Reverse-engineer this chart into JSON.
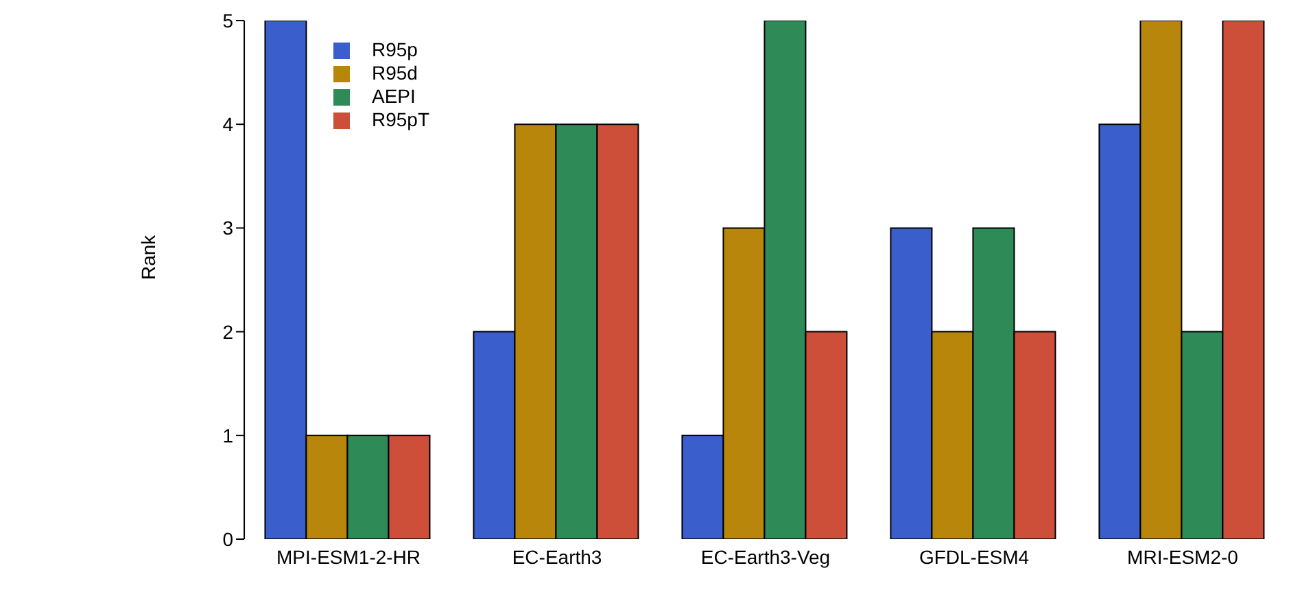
{
  "chart_data": {
    "type": "bar",
    "ylabel": "Rank",
    "categories": [
      "MPI-ESM1-2-HR",
      "EC-Earth3",
      "EC-Earth3-Veg",
      "GFDL-ESM4",
      "MRI-ESM2-0"
    ],
    "series": [
      {
        "name": "R95p",
        "color": "#3a5fcd",
        "values": [
          5,
          2,
          1,
          3,
          4
        ]
      },
      {
        "name": "R95d",
        "color": "#b8860b",
        "values": [
          1,
          4,
          3,
          2,
          5
        ]
      },
      {
        "name": "AEPI",
        "color": "#2e8b57",
        "values": [
          1,
          4,
          5,
          3,
          2
        ]
      },
      {
        "name": "R95pT",
        "color": "#cd4f39",
        "values": [
          1,
          4,
          2,
          2,
          5
        ]
      }
    ],
    "ylim": [
      0,
      5
    ],
    "yticks": [
      0,
      1,
      2,
      3,
      4,
      5
    ],
    "grid": false,
    "legend": "top left"
  }
}
